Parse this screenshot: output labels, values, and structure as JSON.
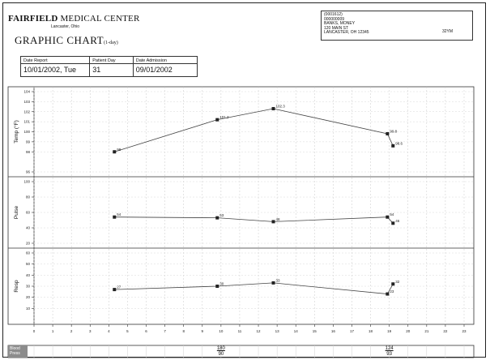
{
  "header": {
    "hospital_bold": "FAIRFIELD",
    "hospital_rest": "MEDICAL CENTER",
    "location": "Lancaster, Ohio",
    "chart_title": "GRAPHIC CHART",
    "chart_subtitle": "(1-day)"
  },
  "patient": {
    "line1": "(0001612)",
    "line2": "000000009",
    "name": "BANKS, MONEY",
    "address": "120 MAIN ST",
    "city": "LANCASTER, OH 12345",
    "age_sex": "32YM"
  },
  "info": {
    "date_report_label": "Date Report",
    "date_report": "10/01/2002, Tue",
    "patient_day_label": "Patient Day",
    "patient_day": "31",
    "date_admission_label": "Date Admission",
    "date_admission": "09/01/2002"
  },
  "blood_pressure": {
    "label_line1": "Blood",
    "label_line2": "Press",
    "readings": [
      {
        "hour": 10,
        "systolic": "180",
        "diastolic": "90"
      },
      {
        "hour": 19,
        "systolic": "124",
        "diastolic": "93"
      }
    ]
  },
  "chart_data": [
    {
      "type": "line",
      "ylabel": "Temp (°F)",
      "ylim": [
        96,
        104
      ],
      "yticks": [
        "96",
        "98",
        "99",
        "100",
        "101",
        "102",
        "103",
        "104"
      ],
      "x": [
        4.3,
        9.8,
        12.8,
        18.9,
        19.2
      ],
      "values": [
        98.0,
        101.2,
        102.3,
        99.8,
        98.6
      ],
      "labels": [
        "98",
        "101.2",
        "102.3",
        "99.8",
        "98.6"
      ]
    },
    {
      "type": "line",
      "ylabel": "Pulse",
      "ylim": [
        20,
        100
      ],
      "yticks": [
        "20",
        "40",
        "60",
        "80",
        "100"
      ],
      "x": [
        4.3,
        9.8,
        12.8,
        18.9,
        19.2
      ],
      "values": [
        54,
        53,
        48,
        54,
        46
      ],
      "labels": [
        "54",
        "53",
        "48",
        "54",
        "46"
      ]
    },
    {
      "type": "line",
      "ylabel": "Resp",
      "ylim": [
        0,
        60
      ],
      "yticks": [
        "10",
        "20",
        "30",
        "40",
        "50",
        "60"
      ],
      "x": [
        4.3,
        9.8,
        12.8,
        18.9,
        19.2
      ],
      "values": [
        27,
        30,
        33,
        23,
        32
      ],
      "labels": [
        "27",
        "30",
        "33",
        "23",
        "32"
      ]
    }
  ],
  "xaxis": {
    "ticks": [
      "0",
      "1",
      "2",
      "3",
      "4",
      "5",
      "6",
      "7",
      "8",
      "9",
      "10",
      "11",
      "12",
      "13",
      "14",
      "15",
      "16",
      "17",
      "18",
      "19",
      "20",
      "21",
      "22",
      "23"
    ]
  }
}
